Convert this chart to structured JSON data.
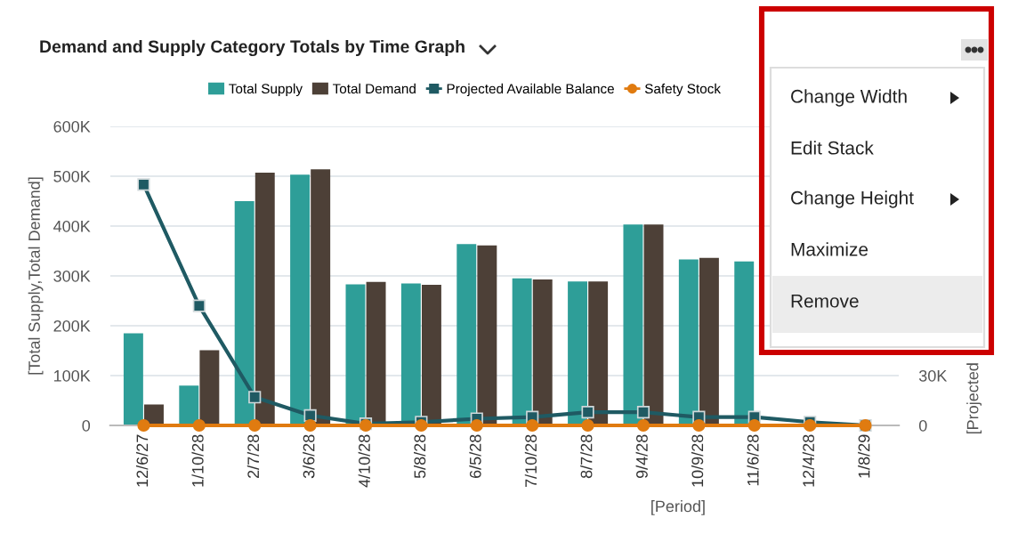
{
  "chart_data": {
    "type": "bar",
    "title": "Demand and Supply Category Totals by Time Graph",
    "xlabel": "[Period]",
    "ylabel": "[Total Supply,Total Demand]",
    "y2label": "[Projected",
    "categories": [
      "12/6/27",
      "1/10/28",
      "2/7/28",
      "3/6/28",
      "4/10/28",
      "5/8/28",
      "6/5/28",
      "7/10/28",
      "8/7/28",
      "9/4/28",
      "10/9/28",
      "11/6/28",
      "12/4/28",
      "1/8/29"
    ],
    "series": [
      {
        "name": "Total Supply",
        "color": "#2e9e98",
        "values": [
          185000,
          80000,
          450000,
          503000,
          283000,
          285000,
          364000,
          295000,
          289000,
          403000,
          333000,
          329000,
          null,
          null
        ]
      },
      {
        "name": "Total Demand",
        "color": "#4d4037",
        "values": [
          42000,
          151000,
          507000,
          514000,
          288000,
          282000,
          361000,
          293000,
          289000,
          403000,
          336000,
          null,
          null,
          null
        ]
      },
      {
        "name": "Projected Available Balance",
        "type": "line",
        "axis": "y2",
        "marker": "square",
        "color": "#1f5a63",
        "values": [
          145000,
          72000,
          17000,
          6000,
          1000,
          2000,
          4000,
          5000,
          8000,
          8000,
          5000,
          5000,
          2000,
          0
        ]
      },
      {
        "name": "Safety Stock",
        "type": "line",
        "axis": "y2",
        "marker": "circle",
        "color": "#e07b10",
        "values": [
          0,
          0,
          0,
          0,
          0,
          0,
          0,
          0,
          0,
          0,
          0,
          0,
          0,
          0
        ]
      }
    ],
    "ylim": [
      0,
      600000
    ],
    "yticks": [
      0,
      {
        "value": 100000,
        "label": "100K"
      },
      {
        "value": 200000,
        "label": "200K"
      },
      {
        "value": 300000,
        "label": "300K"
      },
      {
        "value": 400000,
        "label": "400K"
      },
      {
        "value": 500000,
        "label": "500K"
      },
      {
        "value": 600000,
        "label": "600K"
      }
    ],
    "y2lim": [
      0,
      180000
    ],
    "y2ticks": [
      0,
      {
        "value": 30000,
        "label": "30K"
      }
    ],
    "grid": "y",
    "legend": "top",
    "annotations": [
      "Change Width",
      "Edit Stack",
      "Change Height",
      "Maximize",
      "Remove"
    ]
  }
}
